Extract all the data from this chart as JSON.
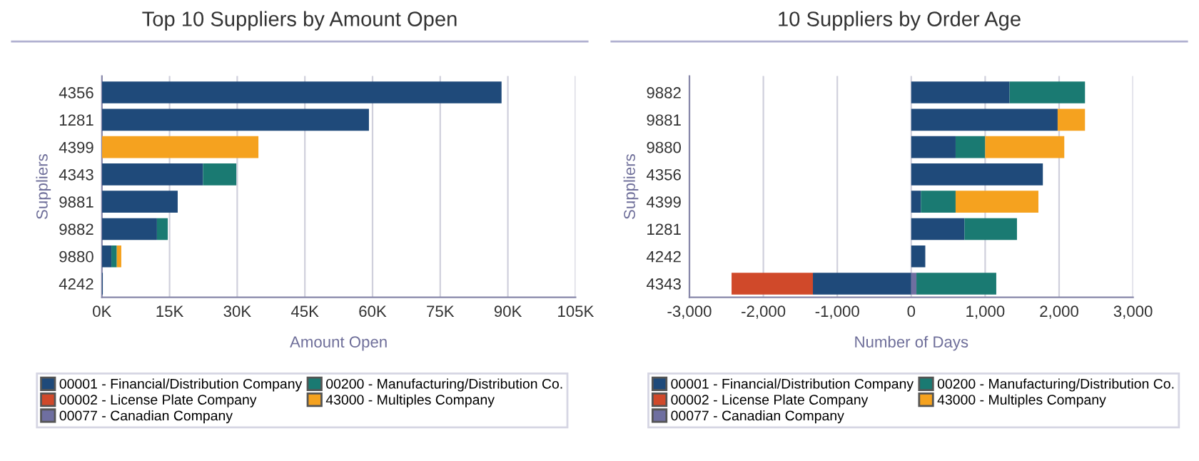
{
  "chart_data": [
    {
      "type": "bar",
      "orientation": "horizontal",
      "stacked": true,
      "title": "Top 10 Suppliers by Amount Open",
      "xlabel": "Amount Open",
      "ylabel": "Suppliers",
      "categories": [
        "4356",
        "1281",
        "4399",
        "4343",
        "9881",
        "9882",
        "9880",
        "4242"
      ],
      "series": [
        {
          "name": "00001 - Financial/Distribution Company",
          "color": "#1f4a7a",
          "values": [
            88.6,
            59.2,
            0,
            22.4,
            16.8,
            12.2,
            2.1,
            0.2
          ]
        },
        {
          "name": "00002 - License Plate Company",
          "color": "#d0492a",
          "values": [
            0,
            0,
            0,
            0,
            0,
            0,
            0,
            0
          ]
        },
        {
          "name": "00077 - Canadian Company",
          "color": "#6f6fa0",
          "values": [
            0,
            0,
            0,
            0,
            0,
            0,
            0,
            0
          ]
        },
        {
          "name": "00200 - Manufacturing/Distribution Co.",
          "color": "#1a7a72",
          "values": [
            0,
            0,
            0,
            7.4,
            0,
            2.4,
            1.2,
            0
          ]
        },
        {
          "name": "43000 - Multiples Company",
          "color": "#f5a21f",
          "values": [
            0,
            0,
            34.7,
            0,
            0,
            0,
            1.0,
            0
          ]
        }
      ],
      "xlim": [
        0,
        105
      ],
      "xticks": [
        {
          "value": 0,
          "label": "0K"
        },
        {
          "value": 15,
          "label": "15K"
        },
        {
          "value": 30,
          "label": "30K"
        },
        {
          "value": 45,
          "label": "45K"
        },
        {
          "value": 60,
          "label": "60K"
        },
        {
          "value": 75,
          "label": "75K"
        },
        {
          "value": 90,
          "label": "90K"
        },
        {
          "value": 105,
          "label": "105K"
        }
      ],
      "grid": "x",
      "legend": "bottom"
    },
    {
      "type": "bar",
      "orientation": "horizontal",
      "stacked": true,
      "title": "10 Suppliers by Order Age",
      "xlabel": "Number of Days",
      "ylabel": "Suppliers",
      "categories": [
        "9882",
        "9881",
        "9880",
        "4356",
        "4399",
        "1281",
        "4242",
        "4343"
      ],
      "series": [
        {
          "name": "00001 - Financial/Distribution Company",
          "color": "#1f4a7a",
          "values": [
            1330,
            1980,
            600,
            1780,
            130,
            720,
            190,
            -1330
          ]
        },
        {
          "name": "00002 - License Plate Company",
          "color": "#d0492a",
          "values": [
            0,
            0,
            0,
            0,
            0,
            0,
            0,
            -1100
          ]
        },
        {
          "name": "00077 - Canadian Company",
          "color": "#6f6fa0",
          "values": [
            0,
            0,
            0,
            0,
            0,
            0,
            0,
            70
          ]
        },
        {
          "name": "00200 - Manufacturing/Distribution Co.",
          "color": "#1a7a72",
          "values": [
            1020,
            0,
            400,
            0,
            470,
            710,
            0,
            1080
          ]
        },
        {
          "name": "43000 - Multiples Company",
          "color": "#f5a21f",
          "values": [
            0,
            370,
            1070,
            0,
            1120,
            0,
            0,
            0
          ]
        }
      ],
      "xlim": [
        -3000,
        3000
      ],
      "xticks": [
        {
          "value": -3000,
          "label": "-3,000"
        },
        {
          "value": -2000,
          "label": "-2,000"
        },
        {
          "value": -1000,
          "label": "-1,000"
        },
        0,
        {
          "value": 1000,
          "label": "1,000"
        },
        {
          "value": 2000,
          "label": "2,000"
        },
        {
          "value": 3000,
          "label": "3,000"
        }
      ],
      "grid": "x",
      "legend": "bottom"
    }
  ]
}
